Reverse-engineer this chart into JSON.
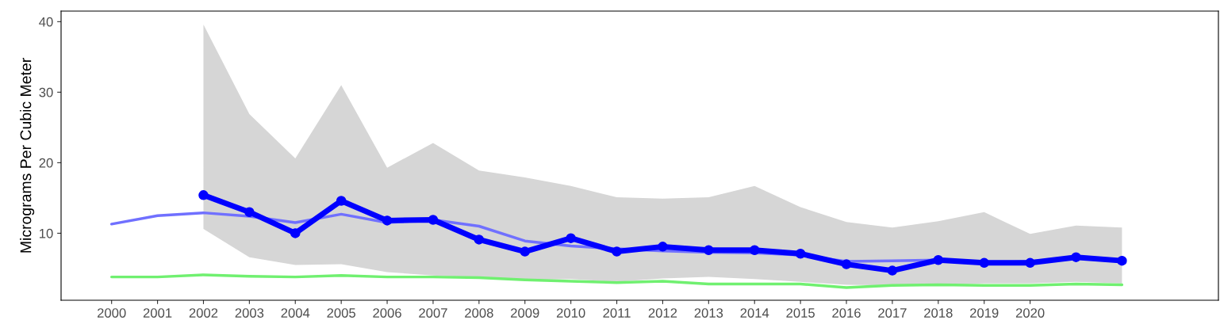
{
  "chart_data": {
    "type": "line",
    "ylabel": "Micrograms Per Cubic Meter",
    "x": [
      2000,
      2001,
      2002,
      2003,
      2004,
      2005,
      2006,
      2007,
      2008,
      2009,
      2010,
      2011,
      2012,
      2013,
      2014,
      2015,
      2016,
      2017,
      2018,
      2019,
      2020,
      2021,
      2022
    ],
    "xlim": [
      1998.9,
      2024.1
    ],
    "xticks": [
      2000,
      2001,
      2002,
      2003,
      2004,
      2005,
      2006,
      2007,
      2008,
      2009,
      2010,
      2011,
      2012,
      2013,
      2014,
      2015,
      2016,
      2017,
      2018,
      2019,
      2020
    ],
    "ylim": [
      0.5,
      41.5
    ],
    "yticks": [
      10,
      20,
      30,
      40
    ],
    "grid": false,
    "series": [
      {
        "color": "#7070ff",
        "marker": "none",
        "values": [
          11.3,
          12.5,
          12.9,
          12.4,
          11.5,
          12.7,
          11.5,
          11.9,
          11.0,
          8.9,
          8.2,
          7.8,
          7.5,
          7.3,
          7.2,
          6.9,
          6.0,
          6.1,
          6.2,
          5.8,
          6.0,
          6.5,
          6.0
        ]
      },
      {
        "color": "#70f070",
        "marker": "none",
        "values": [
          3.8,
          3.8,
          4.1,
          3.9,
          3.8,
          4.0,
          3.8,
          3.8,
          3.7,
          3.4,
          3.2,
          3.0,
          3.2,
          2.8,
          2.8,
          2.8,
          2.3,
          2.6,
          2.7,
          2.6,
          2.6,
          2.8,
          2.7
        ]
      },
      {
        "color": "#0000ff",
        "marker": "circle",
        "values": [
          null,
          null,
          15.4,
          13.0,
          10.0,
          14.6,
          11.8,
          11.9,
          9.1,
          7.4,
          9.3,
          7.4,
          8.1,
          7.6,
          7.6,
          7.1,
          5.6,
          4.7,
          6.2,
          5.8,
          5.8,
          6.6,
          6.1
        ],
        "lower": [
          null,
          null,
          10.6,
          6.6,
          5.5,
          5.6,
          4.5,
          4.0,
          3.7,
          3.4,
          3.5,
          3.1,
          3.6,
          3.8,
          3.5,
          3.1,
          2.7,
          2.6,
          2.7,
          2.9,
          2.9,
          3.1,
          2.9
        ],
        "upper": [
          null,
          null,
          39.6,
          26.9,
          20.6,
          31.0,
          19.3,
          22.8,
          18.9,
          17.9,
          16.7,
          15.1,
          14.9,
          15.1,
          16.7,
          13.7,
          11.6,
          10.8,
          11.7,
          13.0,
          9.9,
          11.1,
          10.8
        ]
      }
    ]
  }
}
